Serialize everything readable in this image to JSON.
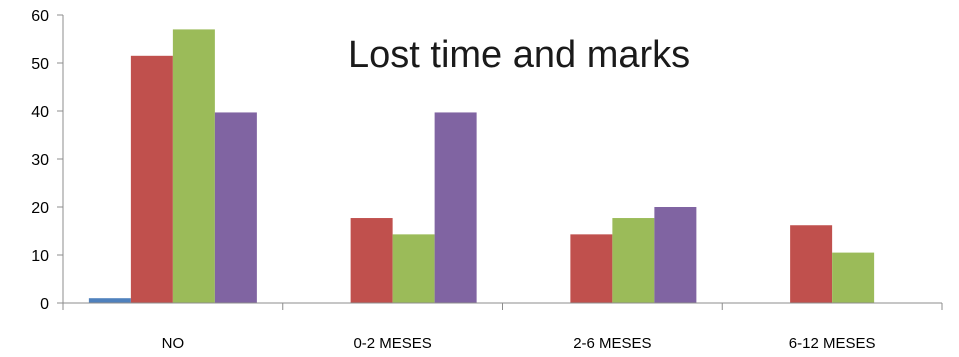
{
  "chart_data": {
    "type": "bar",
    "title": "Lost time and marks",
    "xlabel": "",
    "ylabel": "",
    "ylim": [
      0,
      60
    ],
    "yticks": [
      0,
      10,
      20,
      30,
      40,
      50,
      60
    ],
    "grid": false,
    "legend": "none",
    "categories": [
      "NO",
      "0-2 MESES",
      "2-6 MESES",
      "6-12 MESES"
    ],
    "series": [
      {
        "color": "#4F81BD",
        "values": [
          1,
          0,
          0,
          0
        ]
      },
      {
        "color": "#C0504D",
        "values": [
          51.5,
          17.7,
          14.3,
          16.2
        ]
      },
      {
        "color": "#9BBB59",
        "values": [
          57,
          14.3,
          17.7,
          10.5
        ]
      },
      {
        "color": "#8064A2",
        "values": [
          39.7,
          39.7,
          20,
          0
        ]
      }
    ]
  }
}
